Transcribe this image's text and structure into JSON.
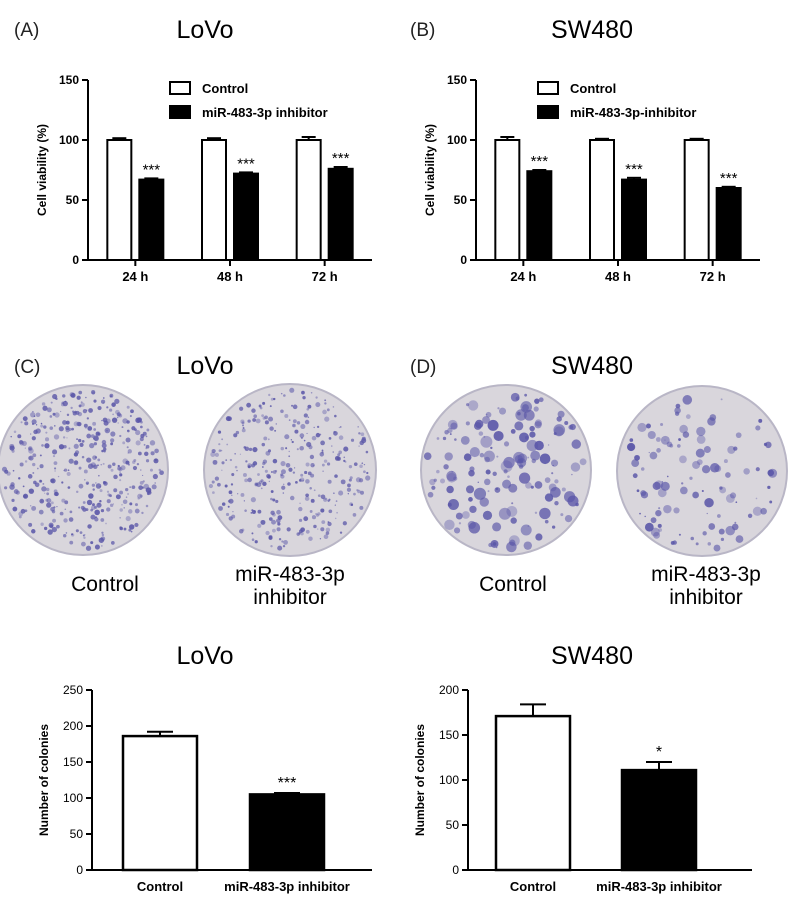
{
  "panels": {
    "A": {
      "letter": "(A)",
      "title": "LoVo"
    },
    "B": {
      "letter": "(B)",
      "title": "SW480"
    },
    "C": {
      "letter": "(C)",
      "title": "LoVo",
      "plate_labels": [
        "Control",
        "miR-483-3p\ninhibitor"
      ]
    },
    "D": {
      "letter": "(D)",
      "title": "SW480",
      "plate_labels": [
        "Control",
        "miR-483-3p\ninhibitor"
      ]
    },
    "E": {
      "title": "LoVo"
    },
    "F": {
      "title": "SW480"
    }
  },
  "colors": {
    "control_fill": "#ffffff",
    "inhibitor_fill": "#000000",
    "plate_bg": "#d9d6dc",
    "colony": "#5a56a8"
  },
  "chart_data": [
    {
      "id": "A",
      "type": "bar",
      "categories": [
        "24 h",
        "48 h",
        "72 h"
      ],
      "ylabel": "Cell viability (%)",
      "xlabel": "",
      "ylim": [
        0,
        150
      ],
      "yticks": [
        0,
        50,
        100,
        150
      ],
      "legend_position": "top-right",
      "series": [
        {
          "name": "Control",
          "values": [
            100,
            100,
            100
          ],
          "errors": [
            1.5,
            1.5,
            2.5
          ],
          "fill": "#ffffff"
        },
        {
          "name": "miR-483-3p inhibitor",
          "values": [
            67,
            72,
            76
          ],
          "errors": [
            1,
            1,
            1.5
          ],
          "fill": "#000000",
          "annotations": [
            "***",
            "***",
            "***"
          ]
        }
      ]
    },
    {
      "id": "B",
      "type": "bar",
      "categories": [
        "24 h",
        "48 h",
        "72 h"
      ],
      "ylabel": "Cell viability (%)",
      "xlabel": "",
      "ylim": [
        0,
        150
      ],
      "yticks": [
        0,
        50,
        100,
        150
      ],
      "legend_position": "top-right",
      "series": [
        {
          "name": "Control",
          "values": [
            100,
            100,
            100
          ],
          "errors": [
            2.5,
            1,
            1
          ],
          "fill": "#ffffff"
        },
        {
          "name": "miR-483-3p-inhibitor",
          "values": [
            74,
            67,
            60
          ],
          "errors": [
            1,
            1.5,
            1
          ],
          "fill": "#000000",
          "annotations": [
            "***",
            "***",
            "***"
          ]
        }
      ]
    },
    {
      "id": "E",
      "type": "bar",
      "categories": [
        "Control",
        "miR-483-3p inhibitor"
      ],
      "ylabel": "Number of colonies",
      "xlabel": "",
      "ylim": [
        0,
        250
      ],
      "yticks": [
        0,
        50,
        100,
        150,
        200,
        250
      ],
      "series": [
        {
          "name": "",
          "values": [
            186,
            105
          ],
          "errors": [
            6,
            2
          ],
          "fills": [
            "#ffffff",
            "#000000"
          ],
          "annotations": [
            "",
            "***"
          ]
        }
      ]
    },
    {
      "id": "F",
      "type": "bar",
      "categories": [
        "Control",
        "miR-483-3p inhibitor"
      ],
      "ylabel": "Number of colonies",
      "xlabel": "",
      "ylim": [
        0,
        200
      ],
      "yticks": [
        0,
        50,
        100,
        150,
        200
      ],
      "series": [
        {
          "name": "",
          "values": [
            171,
            111
          ],
          "errors": [
            13,
            9
          ],
          "fills": [
            "#ffffff",
            "#000000"
          ],
          "annotations": [
            "",
            "*"
          ]
        }
      ]
    }
  ]
}
